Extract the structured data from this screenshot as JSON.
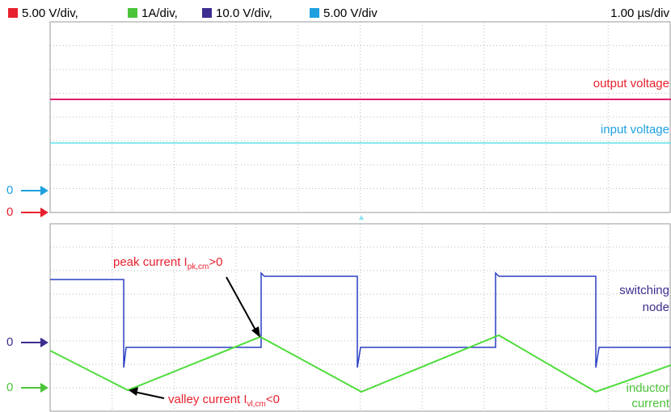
{
  "legend": [
    {
      "label": "5.00 V/div,",
      "color": "#e8212e"
    },
    {
      "label": "1A/div,",
      "color": "#4cc43a"
    },
    {
      "label": "10.0 V/div,",
      "color": "#3b2e8e"
    },
    {
      "label": "5.00 V/div",
      "color": "#1ea0e0"
    }
  ],
  "timebase": "1.00 µs/div",
  "trace_labels": {
    "output": "output voltage",
    "input": "input voltage",
    "switching": [
      "switching",
      "node"
    ],
    "inductor": [
      "inductor",
      "current"
    ]
  },
  "zero_markers": [
    "0",
    "0",
    "0",
    "0"
  ],
  "annotations": {
    "peak": {
      "text": "peak current I",
      "sub": "pk,cm",
      "tail": ">0"
    },
    "valley": {
      "text": "valley current I",
      "sub": "vl,cm",
      "tail": "<0"
    }
  }
}
